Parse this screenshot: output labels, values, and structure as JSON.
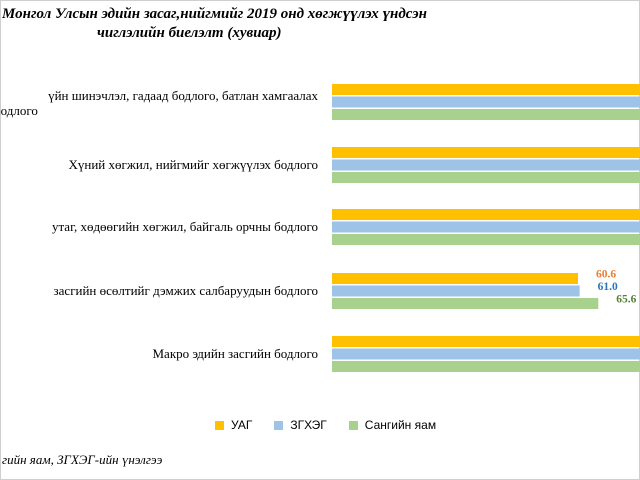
{
  "chart_data": {
    "type": "bar",
    "orientation": "horizontal",
    "title_line1": "Монгол Улсын эдийн засаг,нийгмийг 2019 онд хөгжүүлэх үндсэн",
    "title_line2": "чиглэлийн биелэлт  (хувиар)",
    "categories": [
      "үйн шинэчлэл, гадаад бодлого, батлан хамгаалах",
      "Хүний хөгжил, нийгмийг хөгжүүлэх  бодлого",
      "утаг, хөдөөгийн хөгжил, байгаль орчны бодлого",
      "засгийн өсөлтийг дэмжих салбаруудын бодлого",
      "Макро эдийн засгийн бодлого"
    ],
    "category_line2": [
      "бодлого",
      "",
      "",
      "",
      ""
    ],
    "series": [
      {
        "name": "УАГ",
        "color": "#FFC000",
        "values": [
          100,
          100,
          100,
          60.6,
          100
        ]
      },
      {
        "name": "ЗГХЭГ",
        "color": "#9DC3E6",
        "values": [
          100,
          100,
          96,
          61.0,
          100
        ]
      },
      {
        "name": "Сангийн яам",
        "color": "#A9D18E",
        "values": [
          100,
          100,
          100,
          65.6,
          100
        ]
      }
    ],
    "data_labels": [
      {
        "category_index": 3,
        "series_index": 0,
        "text": "60.6",
        "color": "#ED7D31"
      },
      {
        "category_index": 3,
        "series_index": 1,
        "text": "61.0",
        "color": "#2E75B6"
      },
      {
        "category_index": 3,
        "series_index": 2,
        "text": "65.6",
        "color": "#548235"
      }
    ],
    "legend_position": "bottom",
    "grid": false,
    "source_note": "гийн яам, ЗГХЭГ-ийн үнэлгээ"
  }
}
